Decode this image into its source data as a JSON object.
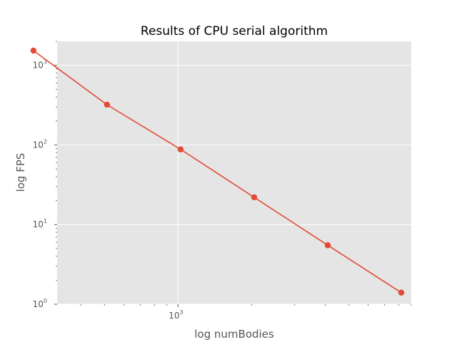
{
  "chart_data": {
    "type": "line",
    "title": "Results of CPU serial algorithm",
    "xlabel": "log numBodies",
    "ylabel": "log FPS",
    "x_scale": "log",
    "y_scale": "log",
    "xlim": [
      320,
      9000
    ],
    "ylim": [
      1,
      2000
    ],
    "grid": true,
    "x_major_ticks": [
      {
        "value": 1000,
        "base": "10",
        "exp": "3"
      }
    ],
    "y_major_ticks": [
      {
        "value": 1,
        "base": "10",
        "exp": "0"
      },
      {
        "value": 10,
        "base": "10",
        "exp": "1"
      },
      {
        "value": 100,
        "base": "10",
        "exp": "2"
      },
      {
        "value": 1000,
        "base": "10",
        "exp": "3"
      }
    ],
    "series": [
      {
        "color": "#E24A33",
        "marker": "circle",
        "x": [
          256,
          512,
          1024,
          2048,
          4096,
          8192
        ],
        "y": [
          1530,
          320,
          88,
          22,
          5.5,
          1.4
        ]
      }
    ],
    "colors": {
      "plot_background": "#E5E5E5",
      "grid": "#FFFFFF",
      "line": "#E24A33",
      "tick_text": "#555555",
      "title_text": "#000000"
    }
  }
}
